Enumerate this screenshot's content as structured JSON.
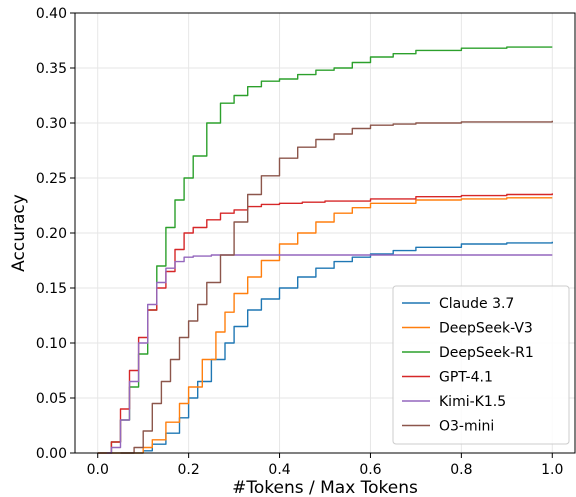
{
  "chart_data": {
    "type": "line",
    "title": "",
    "xlabel": "#Tokens / Max Tokens",
    "ylabel": "Accuracy",
    "xlim": [
      -0.05,
      1.05
    ],
    "ylim": [
      0.0,
      0.4
    ],
    "xticks": [
      0.0,
      0.2,
      0.4,
      0.6,
      0.8,
      1.0
    ],
    "xtick_labels": [
      "0.0",
      "0.2",
      "0.4",
      "0.6",
      "0.8",
      "1.0"
    ],
    "yticks": [
      0.0,
      0.05,
      0.1,
      0.15,
      0.2,
      0.25,
      0.3,
      0.35,
      0.4
    ],
    "ytick_labels": [
      "0.00",
      "0.05",
      "0.10",
      "0.15",
      "0.20",
      "0.25",
      "0.30",
      "0.35",
      "0.40"
    ],
    "grid": true,
    "legend_position": "bottom-right",
    "series": [
      {
        "name": "Claude 3.7",
        "color": "#1f77b4",
        "x": [
          0.03,
          0.08,
          0.1,
          0.12,
          0.15,
          0.18,
          0.2,
          0.22,
          0.25,
          0.28,
          0.3,
          0.33,
          0.36,
          0.4,
          0.44,
          0.48,
          0.52,
          0.56,
          0.6,
          0.65,
          0.7,
          0.8,
          0.9,
          1.0
        ],
        "y": [
          0.0,
          0.0,
          0.002,
          0.008,
          0.018,
          0.032,
          0.05,
          0.065,
          0.085,
          0.1,
          0.115,
          0.13,
          0.14,
          0.15,
          0.16,
          0.168,
          0.174,
          0.178,
          0.181,
          0.184,
          0.187,
          0.19,
          0.191,
          0.192
        ]
      },
      {
        "name": "DeepSeek-V3",
        "color": "#ff7f0e",
        "x": [
          0.03,
          0.08,
          0.1,
          0.12,
          0.15,
          0.18,
          0.2,
          0.23,
          0.26,
          0.28,
          0.3,
          0.33,
          0.36,
          0.4,
          0.44,
          0.48,
          0.52,
          0.56,
          0.6,
          0.7,
          0.8,
          0.9,
          1.0
        ],
        "y": [
          0.0,
          0.0,
          0.005,
          0.012,
          0.028,
          0.045,
          0.06,
          0.085,
          0.11,
          0.128,
          0.145,
          0.16,
          0.175,
          0.19,
          0.2,
          0.21,
          0.218,
          0.223,
          0.227,
          0.23,
          0.231,
          0.232,
          0.232
        ]
      },
      {
        "name": "DeepSeek-R1",
        "color": "#2ca02c",
        "x": [
          0.0,
          0.02,
          0.03,
          0.05,
          0.07,
          0.09,
          0.11,
          0.13,
          0.15,
          0.17,
          0.19,
          0.21,
          0.24,
          0.27,
          0.3,
          0.33,
          0.36,
          0.4,
          0.44,
          0.48,
          0.52,
          0.56,
          0.6,
          0.65,
          0.7,
          0.8,
          0.9,
          1.0
        ],
        "y": [
          0.0,
          0.0,
          0.01,
          0.03,
          0.06,
          0.09,
          0.13,
          0.17,
          0.205,
          0.23,
          0.25,
          0.27,
          0.3,
          0.318,
          0.325,
          0.333,
          0.338,
          0.34,
          0.344,
          0.348,
          0.35,
          0.355,
          0.36,
          0.363,
          0.366,
          0.368,
          0.369,
          0.369
        ]
      },
      {
        "name": "GPT-4.1",
        "color": "#d62728",
        "x": [
          0.0,
          0.02,
          0.03,
          0.05,
          0.07,
          0.09,
          0.11,
          0.13,
          0.15,
          0.17,
          0.19,
          0.21,
          0.24,
          0.27,
          0.3,
          0.33,
          0.36,
          0.4,
          0.45,
          0.5,
          0.6,
          0.7,
          0.8,
          0.9,
          1.0
        ],
        "y": [
          0.0,
          0.0,
          0.01,
          0.04,
          0.075,
          0.105,
          0.13,
          0.15,
          0.165,
          0.185,
          0.2,
          0.205,
          0.212,
          0.218,
          0.221,
          0.224,
          0.226,
          0.227,
          0.228,
          0.229,
          0.231,
          0.233,
          0.234,
          0.235,
          0.236
        ]
      },
      {
        "name": "Kimi-K1.5",
        "color": "#9467bd",
        "x": [
          0.02,
          0.03,
          0.05,
          0.07,
          0.09,
          0.11,
          0.13,
          0.15,
          0.17,
          0.19,
          0.21,
          0.25,
          0.3,
          0.4,
          0.5,
          0.6,
          0.7,
          0.8,
          0.9,
          1.0
        ],
        "y": [
          0.0,
          0.005,
          0.03,
          0.065,
          0.1,
          0.135,
          0.155,
          0.168,
          0.174,
          0.178,
          0.179,
          0.18,
          0.18,
          0.18,
          0.18,
          0.18,
          0.18,
          0.18,
          0.18,
          0.18
        ]
      },
      {
        "name": "O3-mini",
        "color": "#8c564b",
        "x": [
          0.05,
          0.08,
          0.1,
          0.12,
          0.14,
          0.16,
          0.18,
          0.2,
          0.22,
          0.24,
          0.27,
          0.3,
          0.33,
          0.36,
          0.4,
          0.44,
          0.48,
          0.52,
          0.56,
          0.6,
          0.65,
          0.7,
          0.8,
          0.9,
          1.0
        ],
        "y": [
          0.0,
          0.005,
          0.02,
          0.045,
          0.065,
          0.085,
          0.105,
          0.12,
          0.135,
          0.155,
          0.18,
          0.21,
          0.235,
          0.252,
          0.268,
          0.278,
          0.285,
          0.29,
          0.295,
          0.298,
          0.299,
          0.3,
          0.301,
          0.301,
          0.302
        ]
      }
    ]
  }
}
